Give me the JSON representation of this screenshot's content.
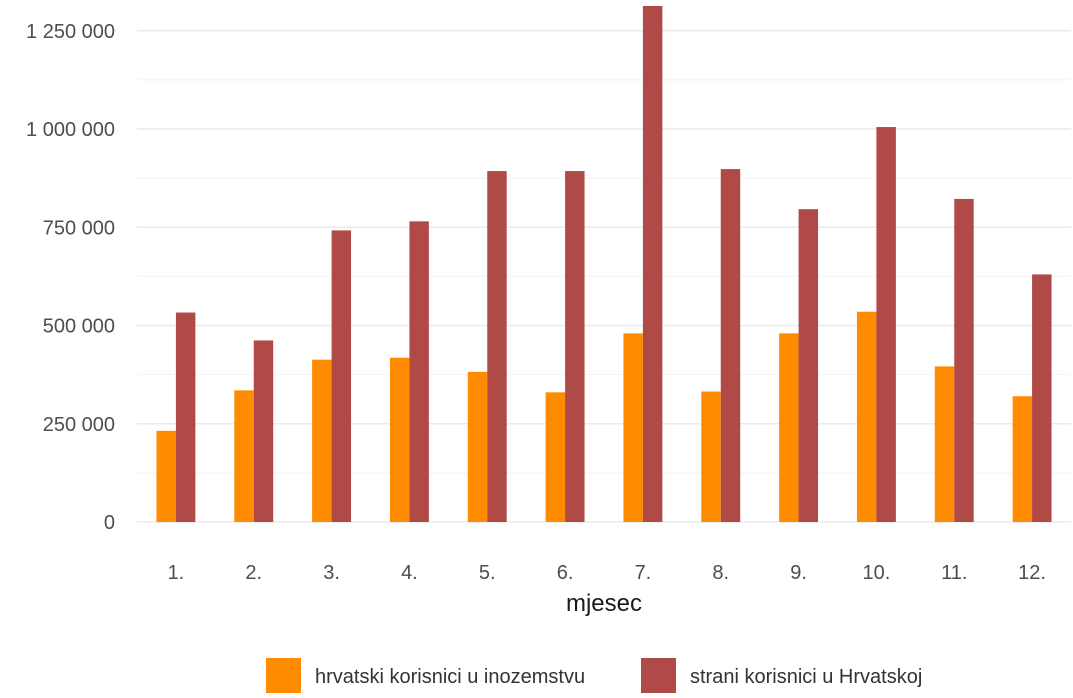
{
  "chart_data": {
    "type": "bar",
    "title": "",
    "xlabel": "mjesec",
    "ylabel": "",
    "categories": [
      "1.",
      "2.",
      "3.",
      "4.",
      "5.",
      "6.",
      "7.",
      "8.",
      "9.",
      "10.",
      "11.",
      "12."
    ],
    "series": [
      {
        "name": "hrvatski korisnici u inozemstvu",
        "color": "#FF8C00",
        "values": [
          232000,
          335000,
          413000,
          418000,
          382000,
          330000,
          480000,
          332000,
          480000,
          535000,
          396000,
          320000
        ]
      },
      {
        "name": "strani korisnici u Hrvatskoj",
        "color": "#B04A47",
        "values": [
          533000,
          462000,
          742000,
          765000,
          893000,
          893000,
          1313000,
          898000,
          796000,
          1005000,
          822000,
          630000
        ]
      }
    ],
    "ylim": [
      0,
      1313000
    ],
    "yticks": [
      0,
      250000,
      500000,
      750000,
      1000000,
      1250000
    ],
    "ytick_labels": [
      "0",
      "250 000",
      "500 000",
      "750 000",
      "1 000 000",
      "1 250 000"
    ],
    "grid": true,
    "legend_position": "bottom"
  }
}
